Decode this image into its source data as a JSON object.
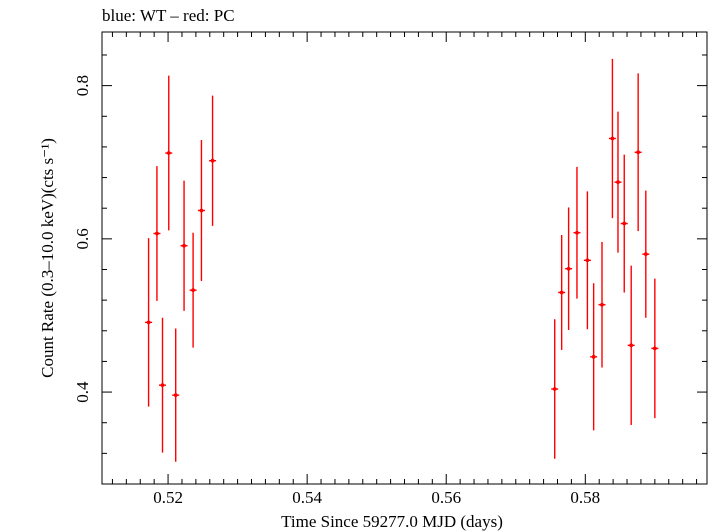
{
  "chart_data": {
    "type": "scatter",
    "title": "blue: WT – red: PC",
    "xlabel": "Time Since 59277.0 MJD (days)",
    "ylabel": "Count Rate (0.3–10.0 keV)(cts s⁻¹)",
    "xlim": [
      0.5105,
      0.5975
    ],
    "ylim": [
      0.28,
      0.87
    ],
    "x_ticks": [
      {
        "value": 0.52,
        "label": "0.52"
      },
      {
        "value": 0.54,
        "label": "0.54"
      },
      {
        "value": 0.56,
        "label": "0.56"
      },
      {
        "value": 0.58,
        "label": "0.58"
      }
    ],
    "y_ticks": [
      {
        "value": 0.4,
        "label": "0.4"
      },
      {
        "value": 0.6,
        "label": "0.6"
      },
      {
        "value": 0.8,
        "label": "0.8"
      }
    ],
    "grid": false,
    "series": [
      {
        "color": "#ff0000",
        "points": [
          {
            "x": 0.5172,
            "y": 0.491,
            "err": 0.11
          },
          {
            "x": 0.5184,
            "y": 0.607,
            "err": 0.088
          },
          {
            "x": 0.5192,
            "y": 0.409,
            "err": 0.088
          },
          {
            "x": 0.5201,
            "y": 0.712,
            "err": 0.101
          },
          {
            "x": 0.5211,
            "y": 0.396,
            "err": 0.087
          },
          {
            "x": 0.5223,
            "y": 0.591,
            "err": 0.085
          },
          {
            "x": 0.5236,
            "y": 0.533,
            "err": 0.075
          },
          {
            "x": 0.5248,
            "y": 0.637,
            "err": 0.092
          },
          {
            "x": 0.5264,
            "y": 0.702,
            "err": 0.085
          },
          {
            "x": 0.5756,
            "y": 0.404,
            "err": 0.091
          },
          {
            "x": 0.5766,
            "y": 0.53,
            "err": 0.075
          },
          {
            "x": 0.5776,
            "y": 0.561,
            "err": 0.08
          },
          {
            "x": 0.5788,
            "y": 0.608,
            "err": 0.086
          },
          {
            "x": 0.5803,
            "y": 0.572,
            "err": 0.09
          },
          {
            "x": 0.5812,
            "y": 0.446,
            "err": 0.096
          },
          {
            "x": 0.5824,
            "y": 0.514,
            "err": 0.082
          },
          {
            "x": 0.5839,
            "y": 0.731,
            "err": 0.104
          },
          {
            "x": 0.5847,
            "y": 0.674,
            "err": 0.092
          },
          {
            "x": 0.5856,
            "y": 0.62,
            "err": 0.09
          },
          {
            "x": 0.5866,
            "y": 0.461,
            "err": 0.104
          },
          {
            "x": 0.5876,
            "y": 0.713,
            "err": 0.103
          },
          {
            "x": 0.5887,
            "y": 0.58,
            "err": 0.083
          },
          {
            "x": 0.59,
            "y": 0.457,
            "err": 0.091
          }
        ]
      }
    ]
  }
}
